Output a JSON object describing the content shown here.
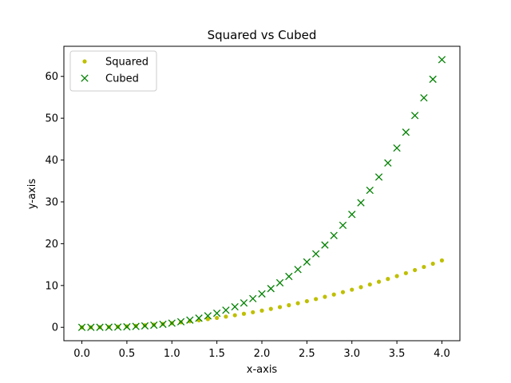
{
  "chart_data": {
    "type": "scatter",
    "title": "Squared vs Cubed",
    "xlabel": "x-axis",
    "ylabel": "y-axis",
    "xlim": [
      -0.2,
      4.2
    ],
    "ylim": [
      -3.2,
      67.2
    ],
    "xticks": [
      0.0,
      0.5,
      1.0,
      1.5,
      2.0,
      2.5,
      3.0,
      3.5,
      4.0
    ],
    "xtick_labels": [
      "0.0",
      "0.5",
      "1.0",
      "1.5",
      "2.0",
      "2.5",
      "3.0",
      "3.5",
      "4.0"
    ],
    "yticks": [
      0,
      10,
      20,
      30,
      40,
      50,
      60
    ],
    "ytick_labels": [
      "0",
      "10",
      "20",
      "30",
      "40",
      "50",
      "60"
    ],
    "grid": false,
    "legend_position": "top-left",
    "x": [
      0.0,
      0.1,
      0.2,
      0.3,
      0.4,
      0.5,
      0.6,
      0.7,
      0.8,
      0.9,
      1.0,
      1.1,
      1.2,
      1.3,
      1.4,
      1.5,
      1.6,
      1.7,
      1.8,
      1.9,
      2.0,
      2.1,
      2.2,
      2.3,
      2.4,
      2.5,
      2.6,
      2.7,
      2.8,
      2.9,
      3.0,
      3.1,
      3.2,
      3.3,
      3.4,
      3.5,
      3.6,
      3.7,
      3.8,
      3.9,
      4.0
    ],
    "series": [
      {
        "name": "Squared",
        "marker": "dot",
        "color": "#bfbf00",
        "values": [
          0.0,
          0.01,
          0.04,
          0.09,
          0.16,
          0.25,
          0.36,
          0.49,
          0.64,
          0.81,
          1.0,
          1.21,
          1.44,
          1.69,
          1.96,
          2.25,
          2.56,
          2.89,
          3.24,
          3.61,
          4.0,
          4.41,
          4.84,
          5.29,
          5.76,
          6.25,
          6.76,
          7.29,
          7.84,
          8.41,
          9.0,
          9.61,
          10.24,
          10.89,
          11.56,
          12.25,
          12.96,
          13.69,
          14.44,
          15.21,
          16.0
        ]
      },
      {
        "name": "Cubed",
        "marker": "x",
        "color": "#008000",
        "values": [
          0.0,
          0.001,
          0.008,
          0.027,
          0.064,
          0.125,
          0.216,
          0.343,
          0.512,
          0.729,
          1.0,
          1.331,
          1.728,
          2.197,
          2.744,
          3.375,
          4.096,
          4.913,
          5.832,
          6.859,
          8.0,
          9.261,
          10.648,
          12.167,
          13.824,
          15.625,
          17.576,
          19.683,
          21.952,
          24.389,
          27.0,
          29.791,
          32.768,
          35.937,
          39.304,
          42.875,
          46.656,
          50.653,
          54.872,
          59.319,
          64.0
        ]
      }
    ]
  }
}
